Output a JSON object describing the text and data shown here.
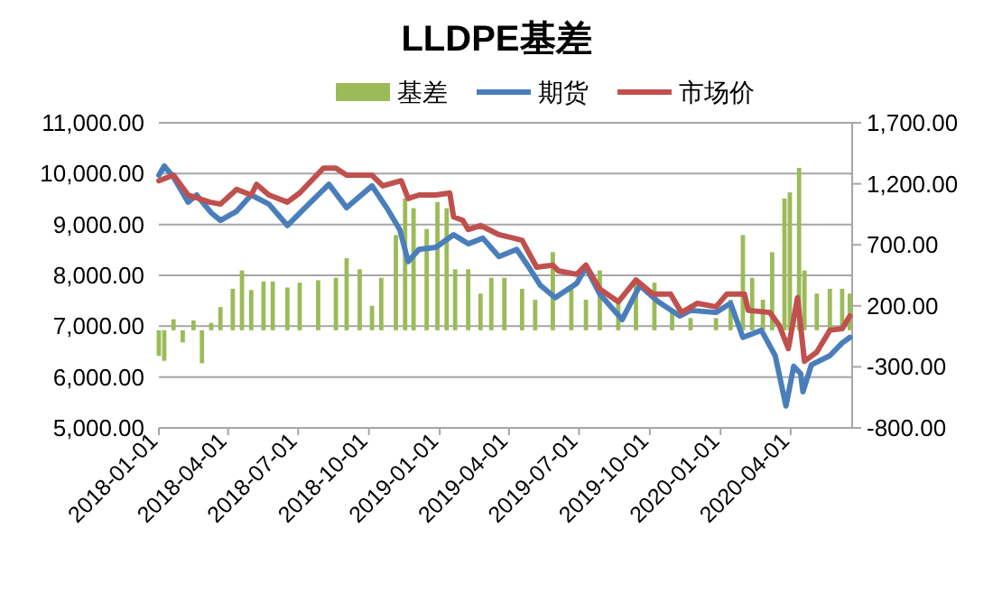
{
  "chart_data": {
    "type": "line",
    "title": "LLDPE基差",
    "legend": "top",
    "grid": "y",
    "marker": "none",
    "line_style": "solid",
    "xlim": [
      "2018-01-01",
      "2020-06-20"
    ],
    "xticks": [
      "2018-01-01",
      "2018-04-01",
      "2018-07-01",
      "2018-10-01",
      "2019-01-01",
      "2019-04-01",
      "2019-07-01",
      "2019-10-01",
      "2020-01-01",
      "2020-04-01"
    ],
    "ylim": [
      5000,
      11000
    ],
    "yticks": [
      {
        "value": 5000,
        "label": "5,000.00"
      },
      {
        "value": 6000,
        "label": "6,000.00"
      },
      {
        "value": 7000,
        "label": "7,000.00"
      },
      {
        "value": 8000,
        "label": "8,000.00"
      },
      {
        "value": 9000,
        "label": "9,000.00"
      },
      {
        "value": 10000,
        "label": "10,000.00"
      },
      {
        "value": 11000,
        "label": "11,000.00"
      }
    ],
    "y2lim": [
      -800,
      1700
    ],
    "y2ticks": [
      {
        "value": -800,
        "label": "-800.00"
      },
      {
        "value": -300,
        "label": "-300.00"
      },
      {
        "value": 200,
        "label": "200.00"
      },
      {
        "value": 700,
        "label": "700.00"
      },
      {
        "value": 1200,
        "label": "1,200.00"
      },
      {
        "value": 1700,
        "label": "1,700.00"
      }
    ],
    "series": [
      {
        "name": "基差",
        "type": "bar",
        "axis": "y2",
        "color": "#9bbb59",
        "x": [
          "2018-01-01",
          "2018-01-08",
          "2018-01-20",
          "2018-02-01",
          "2018-02-15",
          "2018-02-26",
          "2018-03-10",
          "2018-03-22",
          "2018-04-07",
          "2018-04-19",
          "2018-05-01",
          "2018-05-17",
          "2018-05-29",
          "2018-06-17",
          "2018-07-03",
          "2018-07-27",
          "2018-08-19",
          "2018-09-02",
          "2018-09-19",
          "2018-10-05",
          "2018-10-17",
          "2018-11-05",
          "2018-11-17",
          "2018-11-28",
          "2018-12-15",
          "2018-12-29",
          "2019-01-10",
          "2019-01-21",
          "2019-02-07",
          "2019-02-23",
          "2019-03-09",
          "2019-03-26",
          "2019-04-18",
          "2019-05-05",
          "2019-05-28",
          "2019-06-21",
          "2019-07-10",
          "2019-07-28",
          "2019-08-21",
          "2019-09-13",
          "2019-10-07",
          "2019-10-30",
          "2019-11-23",
          "2019-12-26",
          "2020-01-14",
          "2020-01-30",
          "2020-02-11",
          "2020-02-25",
          "2020-03-08",
          "2020-03-24",
          "2020-03-31",
          "2020-04-12",
          "2020-04-19",
          "2020-05-05",
          "2020-05-22",
          "2020-06-07",
          "2020-06-17"
        ],
        "values": [
          -210,
          -250,
          90,
          -100,
          80,
          -270,
          60,
          190,
          340,
          490,
          330,
          400,
          400,
          350,
          390,
          410,
          430,
          590,
          500,
          200,
          430,
          780,
          1080,
          1000,
          830,
          1050,
          1000,
          500,
          500,
          300,
          430,
          430,
          340,
          250,
          640,
          340,
          250,
          490,
          250,
          390,
          390,
          160,
          100,
          100,
          250,
          780,
          430,
          250,
          640,
          1080,
          1130,
          1330,
          490,
          300,
          340,
          340,
          300
        ]
      },
      {
        "name": "期货",
        "color": "#4a7ebb",
        "x": [
          "2018-01-01",
          "2018-01-08",
          "2018-01-20",
          "2018-02-08",
          "2018-02-19",
          "2018-03-10",
          "2018-03-22",
          "2018-04-12",
          "2018-05-01",
          "2018-05-24",
          "2018-06-17",
          "2018-07-10",
          "2018-08-10",
          "2018-09-02",
          "2018-10-05",
          "2018-10-24",
          "2018-11-10",
          "2018-11-21",
          "2018-12-05",
          "2018-12-27",
          "2019-01-19",
          "2019-02-07",
          "2019-02-26",
          "2019-03-19",
          "2019-04-11",
          "2019-04-25",
          "2019-05-12",
          "2019-05-31",
          "2019-06-28",
          "2019-07-10",
          "2019-07-28",
          "2019-08-26",
          "2019-09-18",
          "2019-10-12",
          "2019-11-09",
          "2019-11-23",
          "2019-12-26",
          "2020-01-14",
          "2020-01-30",
          "2020-02-23",
          "2020-03-12",
          "2020-03-26",
          "2020-04-05",
          "2020-04-14",
          "2020-04-17",
          "2020-04-28",
          "2020-05-22",
          "2020-06-07",
          "2020-06-17"
        ],
        "values": [
          9970,
          10150,
          9930,
          9440,
          9580,
          9230,
          9080,
          9260,
          9580,
          9400,
          8980,
          9330,
          9790,
          9330,
          9760,
          9330,
          8900,
          8270,
          8510,
          8550,
          8800,
          8620,
          8730,
          8370,
          8510,
          8200,
          7800,
          7560,
          7840,
          8160,
          7630,
          7130,
          7800,
          7480,
          7200,
          7310,
          7270,
          7450,
          6780,
          6920,
          6420,
          5430,
          6210,
          6070,
          5710,
          6240,
          6420,
          6670,
          6780
        ]
      },
      {
        "name": "市场价",
        "color": "#c0504d",
        "x": [
          "2018-01-01",
          "2018-01-20",
          "2018-02-08",
          "2018-03-08",
          "2018-03-22",
          "2018-04-12",
          "2018-05-01",
          "2018-05-08",
          "2018-05-24",
          "2018-06-17",
          "2018-07-03",
          "2018-08-03",
          "2018-08-19",
          "2018-09-02",
          "2018-10-05",
          "2018-10-19",
          "2018-11-12",
          "2018-11-21",
          "2018-12-05",
          "2018-12-27",
          "2019-01-14",
          "2019-01-19",
          "2019-01-31",
          "2019-02-07",
          "2019-02-23",
          "2019-03-19",
          "2019-04-18",
          "2019-05-07",
          "2019-05-28",
          "2019-06-04",
          "2019-06-28",
          "2019-07-10",
          "2019-07-28",
          "2019-08-21",
          "2019-09-13",
          "2019-10-05",
          "2019-10-28",
          "2019-11-11",
          "2019-12-02",
          "2019-12-26",
          "2020-01-09",
          "2020-02-01",
          "2020-02-06",
          "2020-03-05",
          "2020-03-17",
          "2020-03-29",
          "2020-04-10",
          "2020-04-19",
          "2020-05-05",
          "2020-05-22",
          "2020-06-07",
          "2020-06-17"
        ],
        "values": [
          9860,
          9970,
          9580,
          9440,
          9400,
          9690,
          9580,
          9790,
          9580,
          9440,
          9620,
          10110,
          10110,
          9970,
          9970,
          9760,
          9860,
          9510,
          9580,
          9580,
          9620,
          9150,
          9080,
          8900,
          8980,
          8800,
          8690,
          8160,
          8200,
          8090,
          8020,
          8200,
          7730,
          7480,
          7910,
          7630,
          7630,
          7270,
          7450,
          7380,
          7630,
          7630,
          7310,
          7270,
          7020,
          6560,
          7560,
          6310,
          6490,
          6920,
          6950,
          7200
        ]
      }
    ]
  }
}
